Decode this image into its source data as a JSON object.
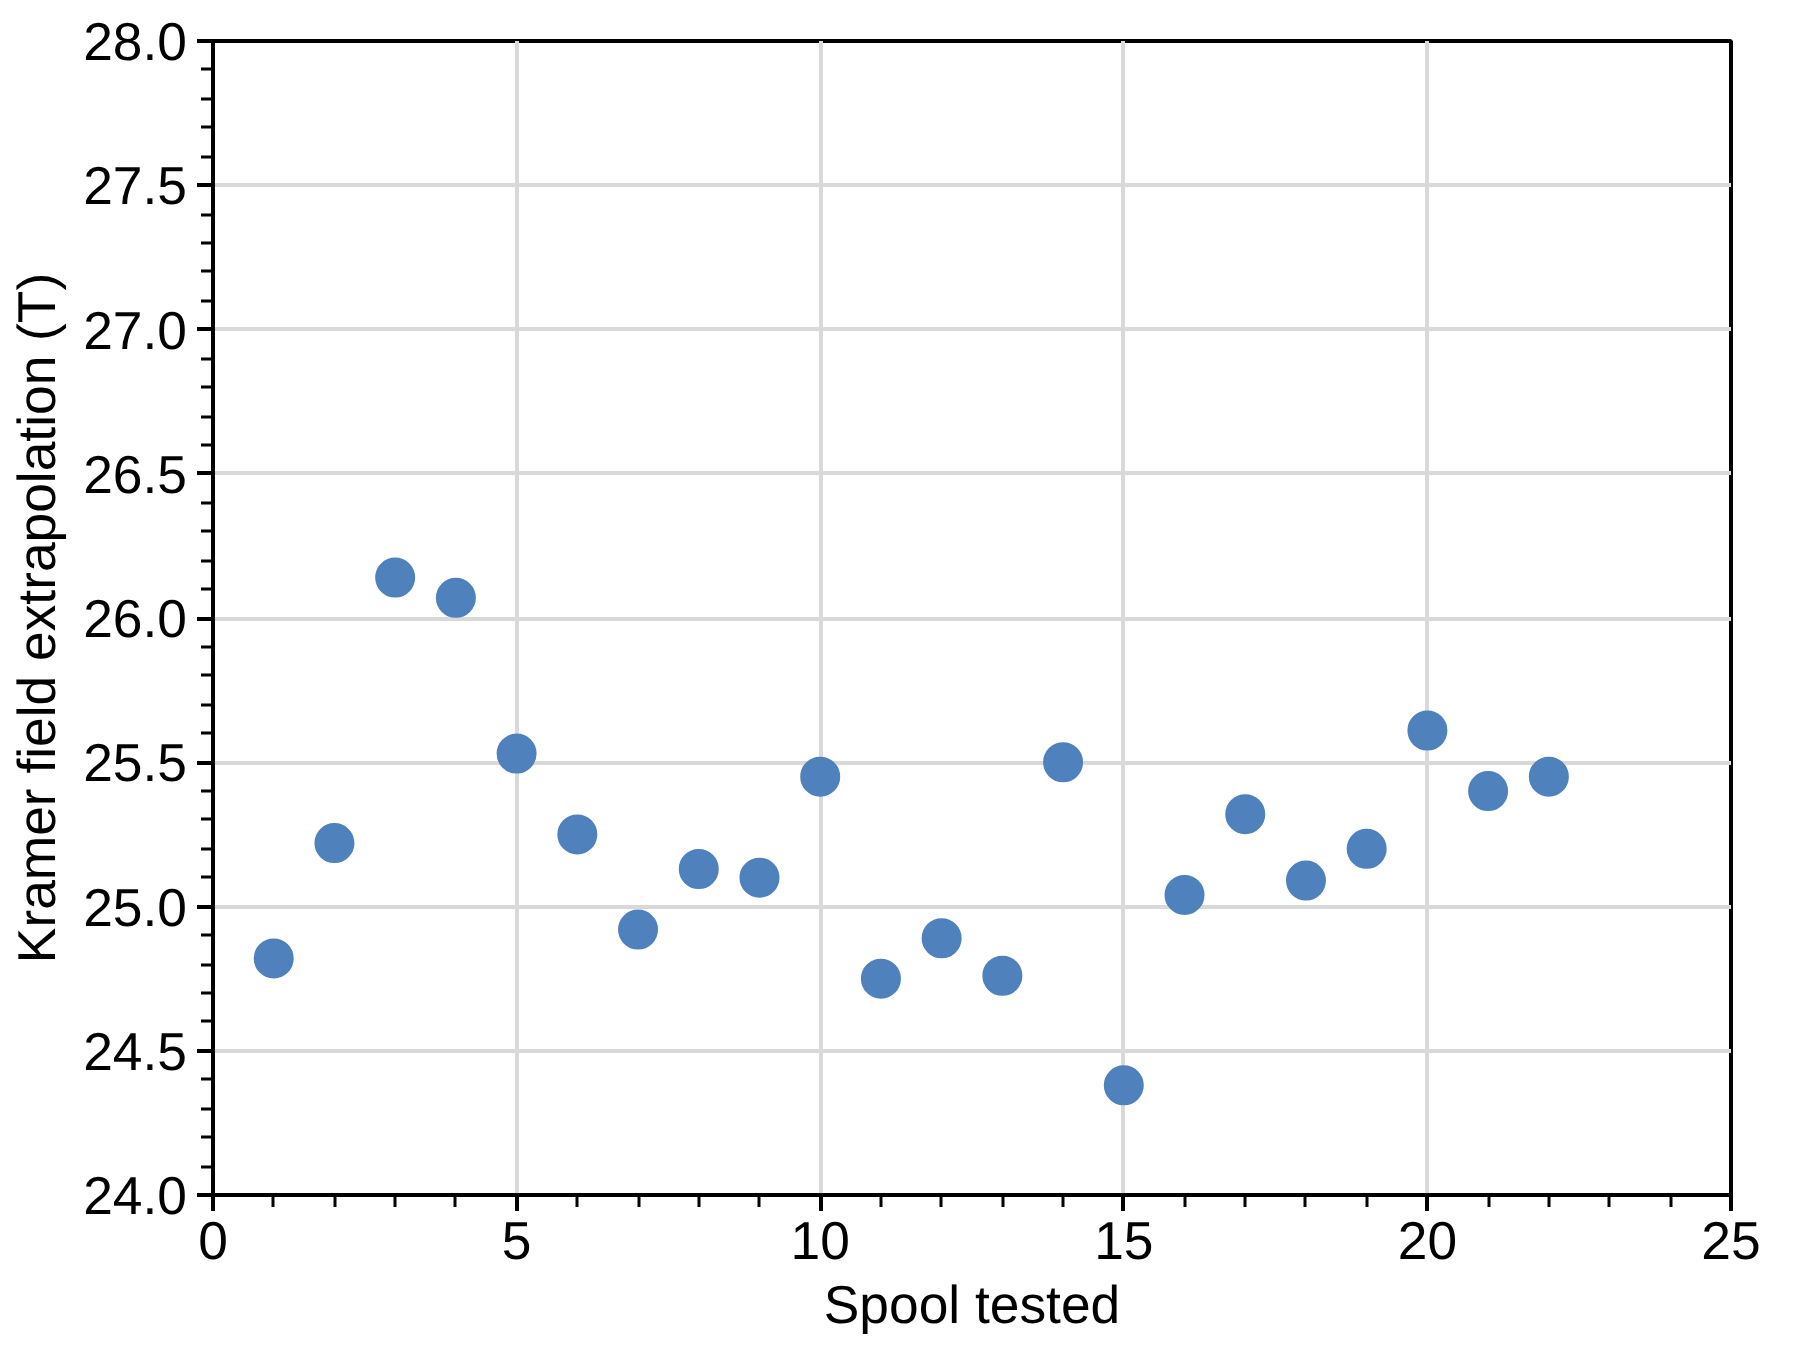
{
  "chart_data": {
    "type": "scatter",
    "xlabel": "Spool tested",
    "ylabel": "Kramer field extrapolation (T)",
    "x": [
      1,
      2,
      3,
      4,
      5,
      6,
      7,
      8,
      9,
      10,
      11,
      12,
      13,
      14,
      15,
      16,
      17,
      18,
      19,
      20,
      21,
      22
    ],
    "series": [
      {
        "color": "#4f81bd",
        "values": [
          24.82,
          25.22,
          26.14,
          26.07,
          25.53,
          25.25,
          24.92,
          25.13,
          25.1,
          25.45,
          24.75,
          24.89,
          24.76,
          25.5,
          24.38,
          25.04,
          25.32,
          25.09,
          25.2,
          25.61,
          25.4,
          25.45
        ]
      }
    ],
    "xlim": [
      0,
      25
    ],
    "xticks": [
      0,
      5,
      10,
      15,
      20,
      25
    ],
    "ylim": [
      24.0,
      28.0
    ],
    "yticks": [
      {
        "value": 24,
        "label": "24.0"
      },
      {
        "value": 24.5,
        "label": "24.5"
      },
      {
        "value": 25,
        "label": "25.0"
      },
      {
        "value": 25.5,
        "label": "25.5"
      },
      {
        "value": 26,
        "label": "26.0"
      },
      {
        "value": 26.5,
        "label": "26.5"
      },
      {
        "value": 27,
        "label": "27.0"
      },
      {
        "value": 27.5,
        "label": "27.5"
      },
      {
        "value": 28,
        "label": "28.0"
      }
    ],
    "grid": true,
    "marker": "circle"
  }
}
